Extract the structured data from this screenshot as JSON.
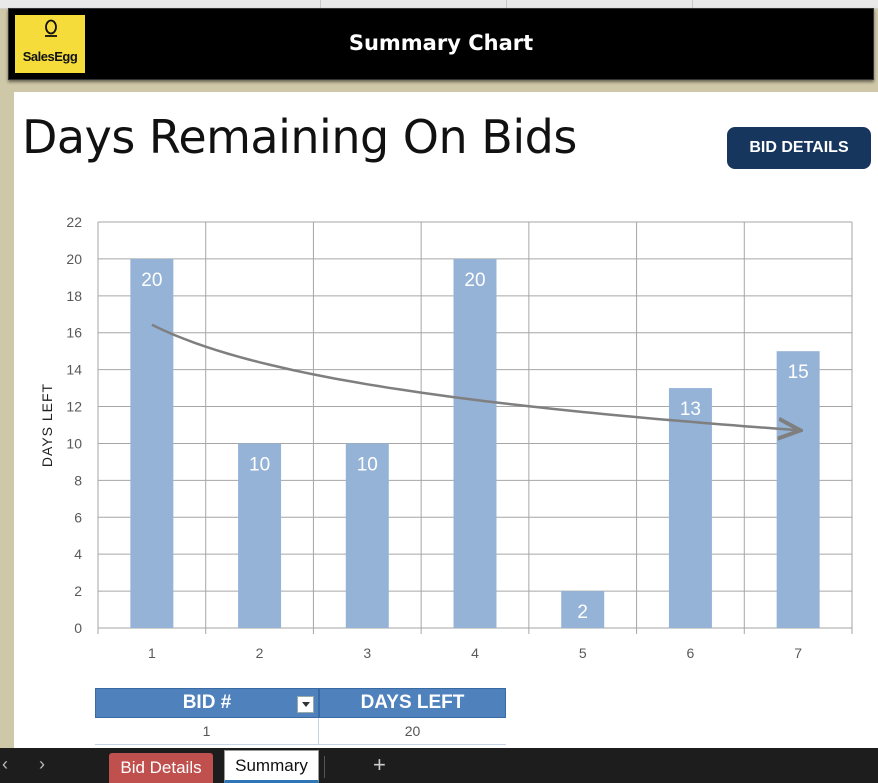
{
  "header": {
    "logo_text": "SalesEgg",
    "title": "Summary Chart"
  },
  "page": {
    "title": "Days Remaining On Bids",
    "bid_details_button": "BID DETAILS"
  },
  "chart_data": {
    "type": "bar",
    "categories": [
      "1",
      "2",
      "3",
      "4",
      "5",
      "6",
      "7"
    ],
    "values": [
      20,
      10,
      10,
      20,
      2,
      13,
      15
    ],
    "title": "",
    "xlabel": "",
    "ylabel": "DAYS LEFT",
    "ylim": [
      0,
      22
    ],
    "yticks": [
      0,
      2,
      4,
      6,
      8,
      10,
      12,
      14,
      16,
      18,
      20,
      22
    ],
    "grid": true,
    "bar_color": "#95b3d7",
    "trendline": true,
    "trendline_color": "#7f7f7f",
    "data_labels": true
  },
  "table": {
    "headers": [
      "BID #",
      "DAYS LEFT"
    ],
    "rows": [
      [
        "1",
        "20"
      ]
    ],
    "header_color": "#4f81bd"
  },
  "tabs": {
    "items": [
      "Bid Details",
      "Summary"
    ],
    "active": "Summary",
    "bid_details_color": "#c0504d",
    "prev_icon": "chevron-left-icon",
    "next_icon": "chevron-right-icon",
    "add_label": "+"
  }
}
